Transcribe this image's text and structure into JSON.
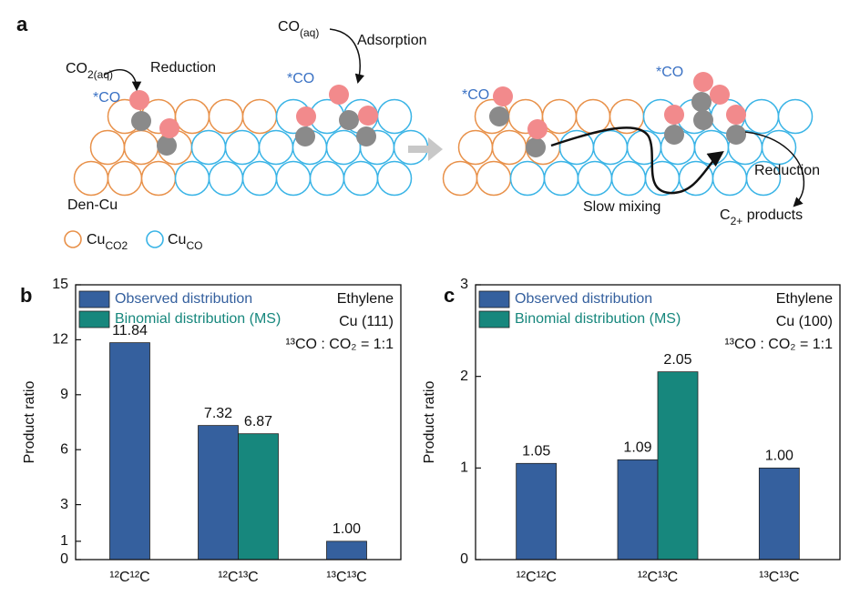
{
  "panel_a": {
    "label": "a",
    "co2": {
      "text": "CO",
      "sub": "2(aq)"
    },
    "reduction_left": "Reduction",
    "co_aq": {
      "text": "CO",
      "sub": "(aq)"
    },
    "adsorption": "Adsorption",
    "star_co": [
      "*CO",
      "*CO",
      "*CO",
      "*CO"
    ],
    "den_cu": "Den-Cu",
    "legend_co2": {
      "text": "Cu",
      "sub": "CO2"
    },
    "legend_co": {
      "text": "Cu",
      "sub": "CO"
    },
    "slow_mixing": "Slow mixing",
    "reduction_right": "Reduction",
    "products": {
      "text": "C",
      "sub": "2+",
      "rest": " products"
    }
  },
  "chart_data": [
    {
      "type": "bar",
      "panel": "b",
      "ylabel": "Product  ratio",
      "categories": [
        "¹²C¹²C",
        "¹²C¹³C",
        "¹³C¹³C"
      ],
      "series": [
        {
          "name": "Observed distribution",
          "color": "#35609e",
          "values": [
            11.84,
            7.32,
            1.0
          ],
          "value_labels": [
            "11.84",
            "7.32",
            "1.00"
          ]
        },
        {
          "name": "Binomial distribution (MS)",
          "color": "#17877d",
          "values": [
            null,
            6.87,
            null
          ],
          "value_labels": [
            null,
            "6.87",
            null
          ]
        }
      ],
      "annotations": [
        "Ethylene",
        "Cu (111)",
        "¹³CO : CO₂ = 1:1"
      ],
      "ylim": [
        0,
        15
      ],
      "yticks": [
        0,
        1,
        3,
        6,
        9,
        12,
        15
      ],
      "legend": "upper left"
    },
    {
      "type": "bar",
      "panel": "c",
      "ylabel": "Product  ratio",
      "categories": [
        "¹²C¹²C",
        "¹²C¹³C",
        "¹³C¹³C"
      ],
      "series": [
        {
          "name": "Observed distribution",
          "color": "#35609e",
          "values": [
            1.05,
            1.09,
            1.0
          ],
          "value_labels": [
            "1.05",
            "1.09",
            "1.00"
          ]
        },
        {
          "name": "Binomial distribution (MS)",
          "color": "#17877d",
          "values": [
            null,
            2.05,
            null
          ],
          "value_labels": [
            null,
            "2.05",
            null
          ]
        }
      ],
      "annotations": [
        "Ethylene",
        "Cu (100)",
        "¹³CO : CO₂ = 1:1"
      ],
      "ylim": [
        0,
        3
      ],
      "yticks": [
        0,
        1,
        2,
        3
      ],
      "legend": "upper left"
    }
  ]
}
